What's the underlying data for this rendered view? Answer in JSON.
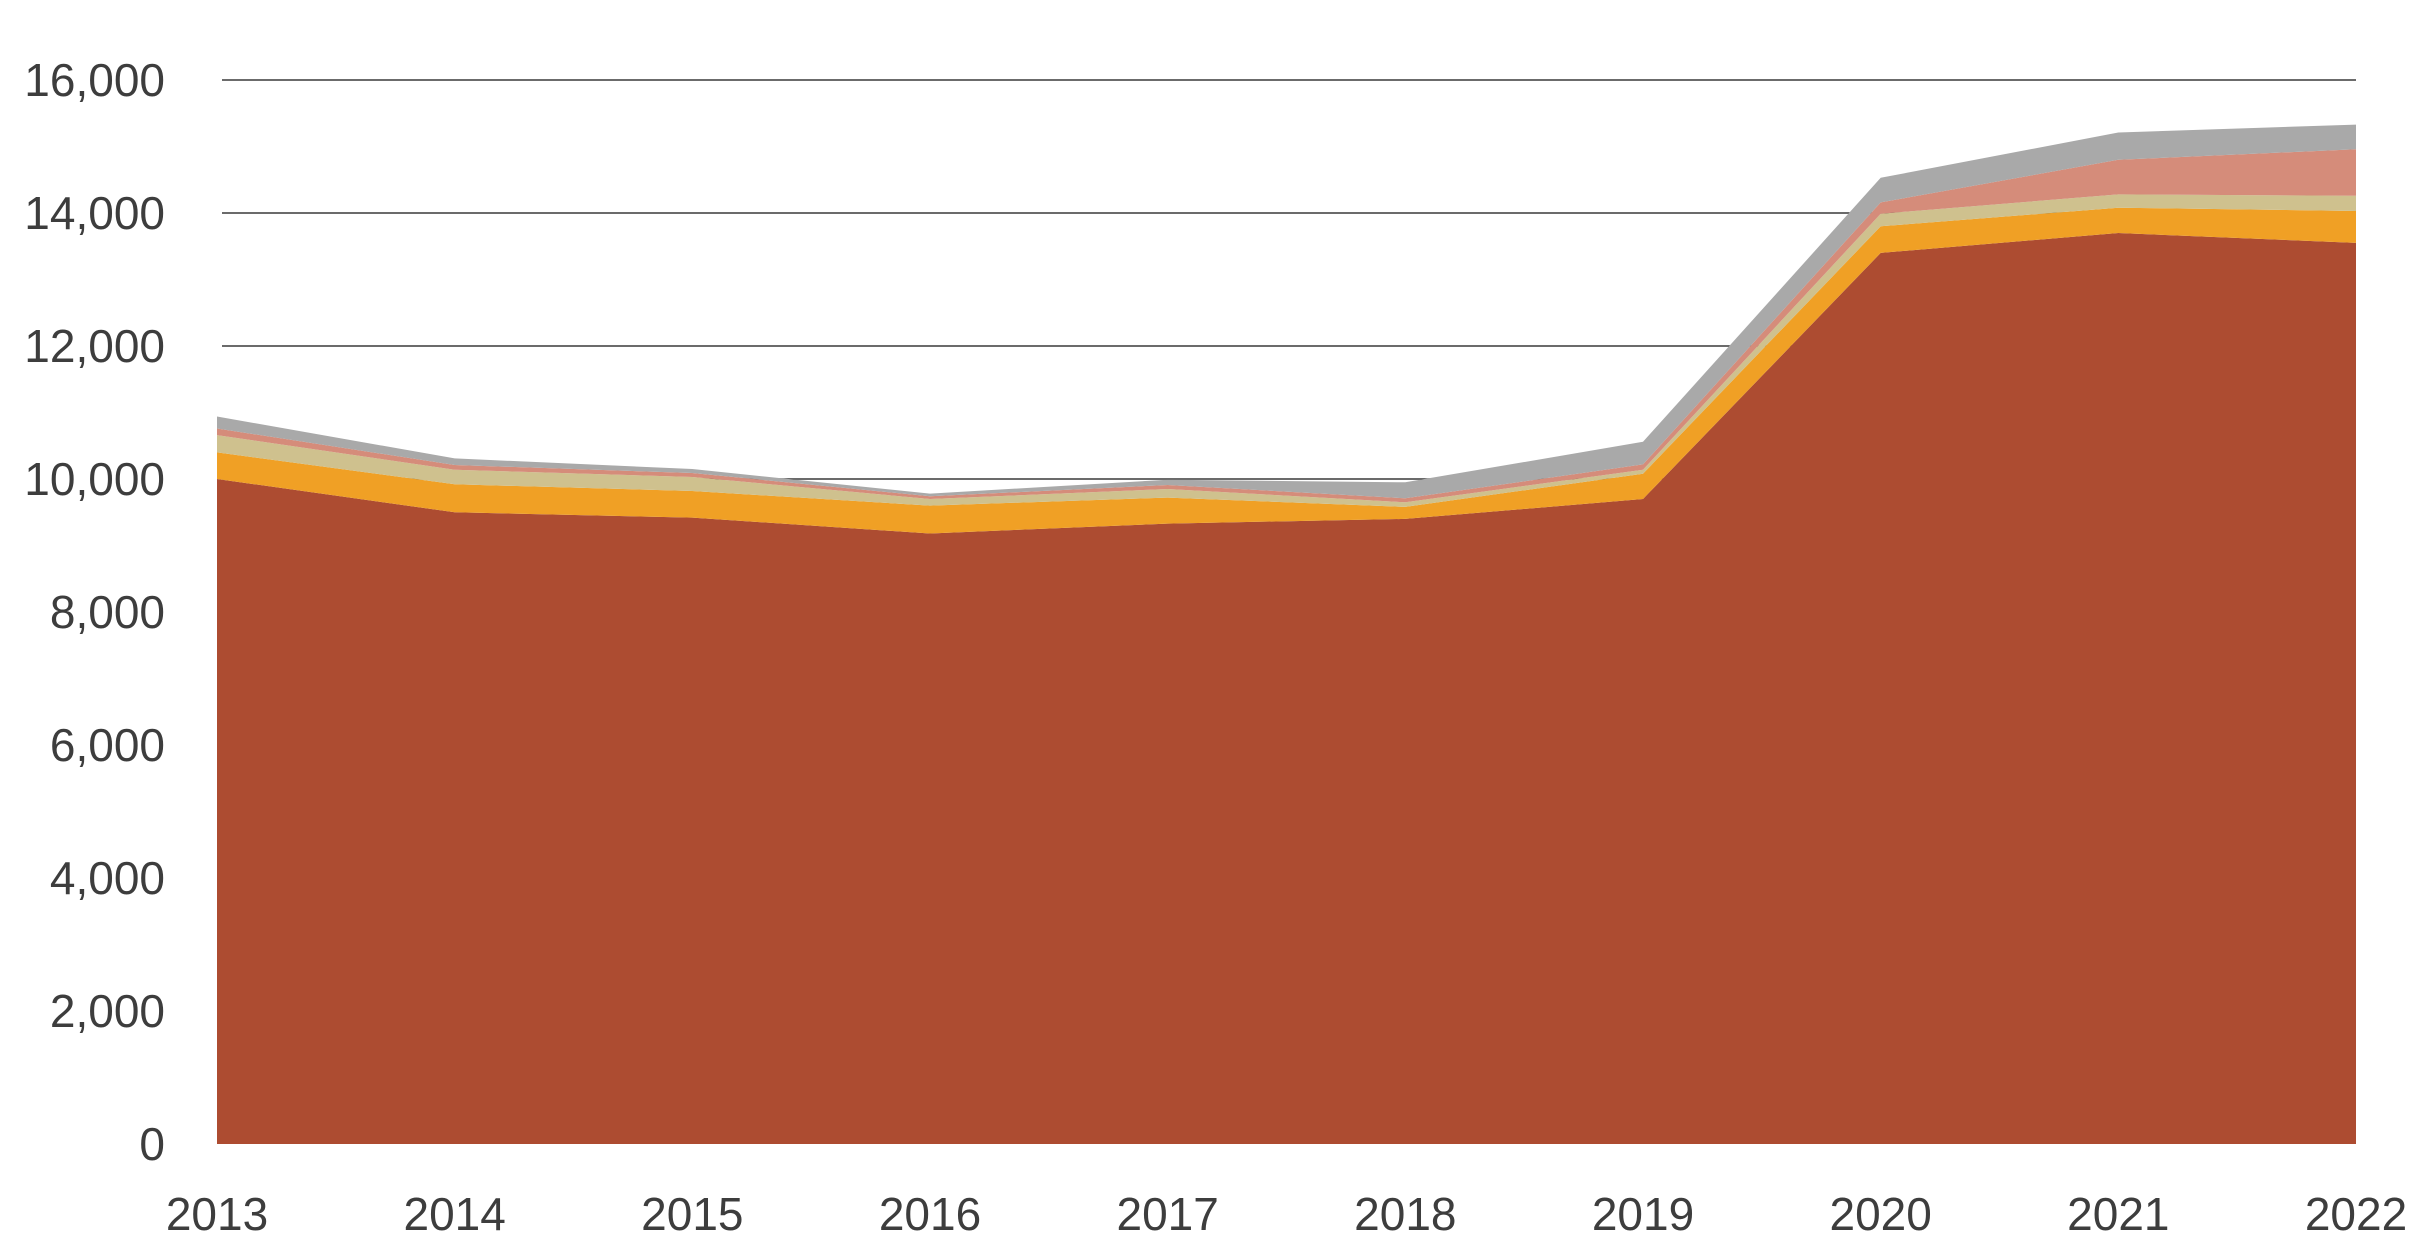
{
  "chart_data": {
    "type": "area",
    "stacked": true,
    "title": "",
    "xlabel": "",
    "ylabel": "",
    "x": [
      "2013",
      "2014",
      "2015",
      "2016",
      "2017",
      "2018",
      "2019",
      "2020",
      "2021",
      "2022"
    ],
    "ylim": [
      0,
      16000
    ],
    "yticks": [
      "0",
      "2,000",
      "4,000",
      "6,000",
      "8,000",
      "10,000",
      "12,000",
      "14,000",
      "16,000"
    ],
    "grid": true,
    "legend": "none",
    "series": [
      {
        "color": "#ad4c31",
        "values": [
          10000,
          9500,
          9420,
          9180,
          9330,
          9400,
          9700,
          13400,
          13700,
          13550
        ]
      },
      {
        "color": "#f0a025",
        "values": [
          400,
          420,
          400,
          420,
          390,
          180,
          380,
          400,
          380,
          480
        ]
      },
      {
        "color": "#cfc18e",
        "values": [
          260,
          220,
          210,
          100,
          130,
          70,
          60,
          190,
          200,
          230
        ]
      },
      {
        "color": "#d58c7a",
        "values": [
          100,
          70,
          60,
          40,
          60,
          60,
          80,
          170,
          520,
          700
        ]
      },
      {
        "color": "#a9a9a9",
        "values": [
          180,
          100,
          60,
          40,
          80,
          240,
          340,
          370,
          410,
          370
        ]
      }
    ]
  }
}
